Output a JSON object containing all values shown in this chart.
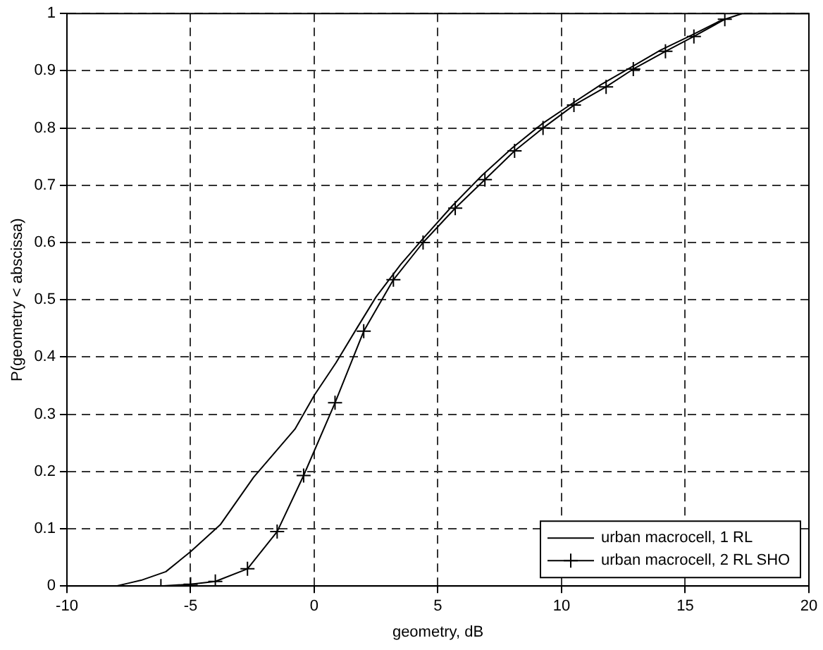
{
  "chart_data": {
    "type": "line",
    "xlabel": "geometry, dB",
    "ylabel": "P(geometry < abscissa)",
    "xlim": [
      -10,
      20
    ],
    "xticks": [
      -10,
      -5,
      0,
      5,
      10,
      15,
      20
    ],
    "ylim": [
      0,
      1
    ],
    "yticks": [
      0,
      0.1,
      0.2,
      0.3,
      0.4,
      0.5,
      0.6,
      0.7,
      0.8,
      0.9,
      1
    ],
    "grid": true,
    "legend": "bottom right",
    "series": [
      {
        "name": "urban macrocell, 1 RL",
        "color": "#000000",
        "marker": "none",
        "x": [
          -10,
          -8,
          -7.5,
          -7,
          -6,
          -5,
          -3.8,
          -2.45,
          -0.78,
          0,
          0.88,
          1.76,
          2.5,
          3.5,
          4.4,
          5.6,
          6.8,
          8,
          9.2,
          10.4,
          11.6,
          12.8,
          14,
          15.2,
          16.4,
          17.3,
          20
        ],
        "values": [
          0,
          0,
          0.005,
          0.01,
          0.025,
          0.06,
          0.107,
          0.19,
          0.274,
          0.333,
          0.39,
          0.453,
          0.505,
          0.562,
          0.607,
          0.665,
          0.718,
          0.765,
          0.807,
          0.842,
          0.876,
          0.906,
          0.936,
          0.961,
          0.987,
          1,
          1
        ]
      },
      {
        "name": "urban macrocell, 2 RL SHO",
        "color": "#000000",
        "marker": "cross",
        "x": [
          -6.2,
          -5,
          -4,
          -2.7,
          -1.5,
          -0.43,
          0.84,
          2,
          3.2,
          4.4,
          5.7,
          6.9,
          8.1,
          9.25,
          10.5,
          11.8,
          12.9,
          14.2,
          15.35,
          16.6
        ],
        "values": [
          0,
          0.003,
          0.008,
          0.03,
          0.095,
          0.193,
          0.32,
          0.445,
          0.535,
          0.6,
          0.66,
          0.71,
          0.76,
          0.8,
          0.84,
          0.872,
          0.903,
          0.934,
          0.96,
          0.99
        ]
      }
    ]
  }
}
